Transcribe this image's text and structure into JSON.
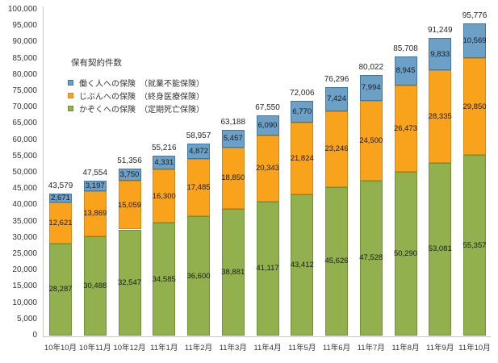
{
  "chart_data": {
    "type": "bar",
    "stacked": true,
    "title": "",
    "legend_title": "保有契約件数",
    "legend_position": "upper-left-inside",
    "grid": false,
    "categories": [
      "10年10月",
      "10年11月",
      "10年12月",
      "11年1月",
      "11年2月",
      "11年3月",
      "11年4月",
      "11年5月",
      "11年6月",
      "11年7月",
      "11年8月",
      "11年9月",
      "11年10月"
    ],
    "series": [
      {
        "name": "かぞくへの保険　（定期死亡保険）",
        "color": "#92B04D",
        "border_color": "#71903A",
        "values": [
          28287,
          30488,
          32547,
          34585,
          36600,
          38881,
          41117,
          43412,
          45626,
          47528,
          50290,
          53081,
          55357
        ]
      },
      {
        "name": "じぶんへの保険　（終身医療保険）",
        "color": "#F9A21C",
        "border_color": "#D08A15",
        "values": [
          12621,
          13869,
          15059,
          16300,
          17485,
          18850,
          20343,
          21824,
          23246,
          24500,
          26473,
          28335,
          29850
        ]
      },
      {
        "name": "働く人への保険　（就業不能保険）",
        "color": "#6CA0C7",
        "border_color": "#3E76A4",
        "values": [
          2671,
          3197,
          3750,
          4331,
          4872,
          5457,
          6090,
          6770,
          7424,
          7994,
          8945,
          9833,
          10569
        ]
      }
    ],
    "legend_order": [
      2,
      1,
      0
    ],
    "totals": [
      43579,
      47554,
      51356,
      55216,
      58957,
      63188,
      67550,
      72006,
      76296,
      80022,
      85708,
      91249,
      95776
    ],
    "ylim": [
      0,
      100000
    ],
    "y_tick_step": 5000,
    "y_tick_labels": [
      "0",
      "5,000",
      "10,000",
      "15,000",
      "20,000",
      "25,000",
      "30,000",
      "35,000",
      "40,000",
      "45,000",
      "50,000",
      "55,000",
      "60,000",
      "65,000",
      "70,000",
      "75,000",
      "80,000",
      "85,000",
      "90,000",
      "95,000",
      "100,000"
    ]
  }
}
